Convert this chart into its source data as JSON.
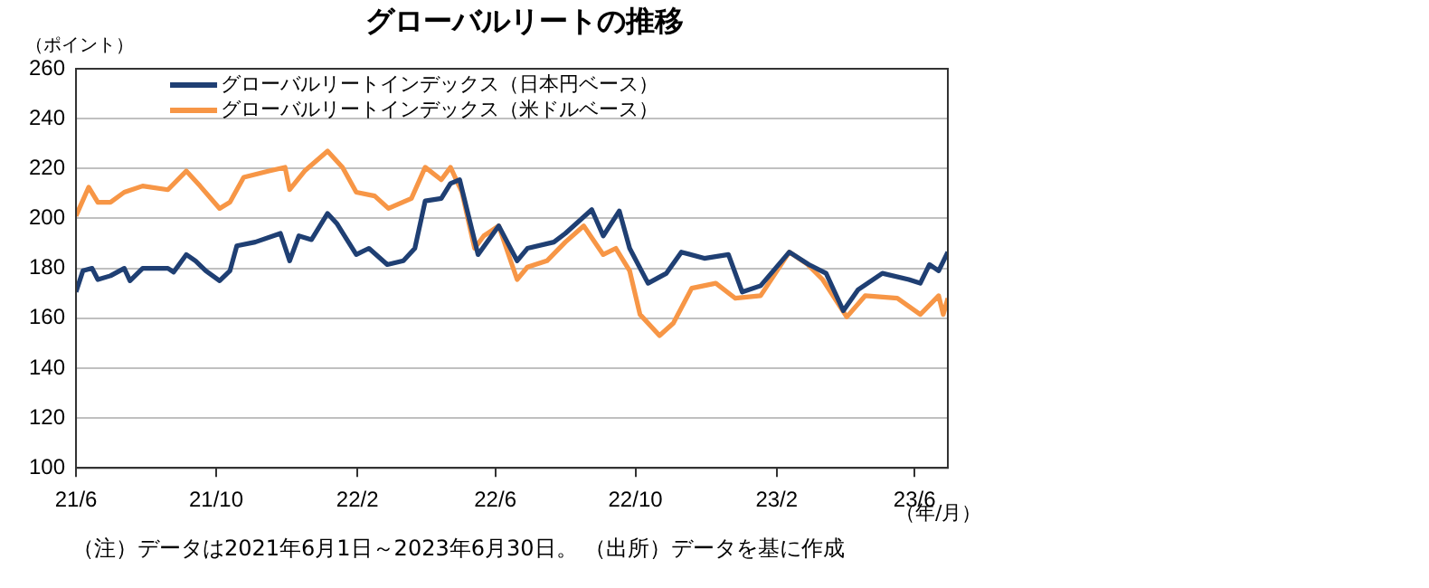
{
  "chart_data": {
    "type": "line",
    "title": "グローバルリートの推移",
    "ylabel": "（ポイント）",
    "annotations": [
      "（年/月）",
      "（注）データは2021年6月1日～2023年6月30日。 （出所）データを基に作成"
    ],
    "xlim": [
      "2021-06-01",
      "2023-06-30"
    ],
    "xticks": [
      {
        "value": "2021-06-01",
        "label": "21/6"
      },
      {
        "value": "2021-10-01",
        "label": "21/10"
      },
      {
        "value": "2022-02-01",
        "label": "22/2"
      },
      {
        "value": "2022-06-01",
        "label": "22/6"
      },
      {
        "value": "2022-10-01",
        "label": "22/10"
      },
      {
        "value": "2023-02-01",
        "label": "23/2"
      },
      {
        "value": "2023-06-01",
        "label": "23/6"
      }
    ],
    "ylim": [
      100,
      260
    ],
    "yticks": [
      100,
      120,
      140,
      160,
      180,
      200,
      220,
      240,
      260
    ],
    "grid": "y",
    "legend": "top left",
    "marker": "none",
    "line_style": "solid",
    "series": [
      {
        "name": "グローバルリートインデックス（日本円ベース）",
        "color": "#1f3f73",
        "x": [
          "2021-06-01",
          "2021-06-07",
          "2021-06-15",
          "2021-06-20",
          "2021-07-01",
          "2021-07-13",
          "2021-07-18",
          "2021-07-29",
          "2021-08-20",
          "2021-08-25",
          "2021-09-05",
          "2021-09-13",
          "2021-09-22",
          "2021-10-04",
          "2021-10-13",
          "2021-10-19",
          "2021-11-04",
          "2021-11-26",
          "2021-12-04",
          "2021-12-12",
          "2021-12-23",
          "2022-01-06",
          "2022-01-14",
          "2022-01-31",
          "2022-02-11",
          "2022-02-27",
          "2022-03-13",
          "2022-03-23",
          "2022-04-01",
          "2022-04-15",
          "2022-04-23",
          "2022-05-01",
          "2022-05-09",
          "2022-05-17",
          "2022-06-04",
          "2022-06-20",
          "2022-06-29",
          "2022-07-22",
          "2022-08-01",
          "2022-08-24",
          "2022-09-03",
          "2022-09-17",
          "2022-09-26",
          "2022-10-12",
          "2022-10-28",
          "2022-11-10",
          "2022-11-30",
          "2022-12-21",
          "2023-01-02",
          "2023-01-18",
          "2023-02-12",
          "2023-03-01",
          "2023-03-16",
          "2023-03-31",
          "2023-04-13",
          "2023-05-04",
          "2023-05-27",
          "2023-06-06",
          "2023-06-14",
          "2023-06-22",
          "2023-06-30"
        ],
        "values": [
          170.5,
          179,
          180,
          175.5,
          177,
          180,
          175,
          180,
          180,
          178.5,
          185.5,
          183,
          179,
          175,
          179,
          189,
          190.5,
          194,
          183,
          193,
          191.5,
          202,
          198,
          185.5,
          188,
          181.5,
          183,
          188,
          207,
          208,
          214,
          215.5,
          200.5,
          185.5,
          197,
          183,
          188,
          190.5,
          194,
          203.5,
          193,
          203,
          188,
          174,
          178,
          186.5,
          184,
          185.5,
          170.5,
          173,
          186.5,
          181.5,
          178,
          163,
          171.5,
          178,
          175.5,
          174,
          181.5,
          179,
          186.5
        ]
      },
      {
        "name": "グローバルリートインデックス（米ドルベース）",
        "color": "#f79646",
        "x": [
          "2021-06-01",
          "2021-06-12",
          "2021-06-20",
          "2021-07-01",
          "2021-07-13",
          "2021-07-29",
          "2021-08-20",
          "2021-09-05",
          "2021-09-17",
          "2021-10-04",
          "2021-10-13",
          "2021-10-25",
          "2021-11-16",
          "2021-11-30",
          "2021-12-04",
          "2021-12-17",
          "2022-01-06",
          "2022-01-19",
          "2022-01-31",
          "2022-02-16",
          "2022-02-28",
          "2022-03-20",
          "2022-04-01",
          "2022-04-15",
          "2022-04-23",
          "2022-05-03",
          "2022-05-14",
          "2022-05-22",
          "2022-06-04",
          "2022-06-20",
          "2022-06-29",
          "2022-07-16",
          "2022-08-01",
          "2022-08-17",
          "2022-09-03",
          "2022-09-14",
          "2022-09-26",
          "2022-10-05",
          "2022-10-22",
          "2022-11-03",
          "2022-11-19",
          "2022-12-10",
          "2022-12-27",
          "2023-01-18",
          "2023-02-12",
          "2023-02-28",
          "2023-03-13",
          "2023-04-03",
          "2023-04-19",
          "2023-05-17",
          "2023-06-06",
          "2023-06-22",
          "2023-06-26",
          "2023-06-30"
        ],
        "values": [
          201,
          212.5,
          206.5,
          206.5,
          210.5,
          213,
          211.5,
          219,
          213,
          204,
          206.5,
          216.5,
          219,
          220.5,
          211.5,
          219,
          227,
          220.5,
          210.5,
          209,
          204,
          208,
          220.5,
          215.5,
          220.5,
          210.5,
          188,
          193,
          197,
          175.5,
          180.5,
          183,
          190.5,
          197,
          185.5,
          188,
          179,
          161.5,
          153,
          158,
          172,
          174,
          168,
          169,
          186.5,
          181.5,
          175.5,
          160.5,
          169,
          168,
          161.5,
          169,
          161.5,
          168
        ]
      }
    ]
  }
}
